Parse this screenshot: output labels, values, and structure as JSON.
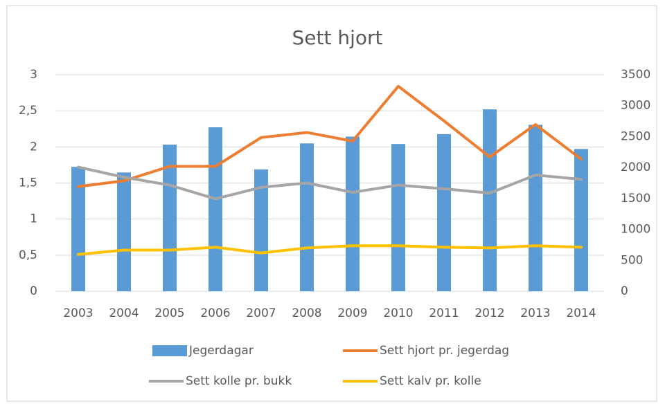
{
  "chart_data": {
    "type": "combo",
    "title": "Sett hjort",
    "categories": [
      "2003",
      "2004",
      "2005",
      "2006",
      "2007",
      "2008",
      "2009",
      "2010",
      "2011",
      "2012",
      "2013",
      "2014"
    ],
    "series": [
      {
        "name": "Jegerdagar",
        "type": "bar",
        "axis": "y2",
        "color": "#5b9bd5",
        "values": [
          2010,
          1920,
          2370,
          2650,
          1970,
          2390,
          2500,
          2380,
          2540,
          2940,
          2690,
          2300
        ]
      },
      {
        "name": "Sett hjort pr. jegerdag",
        "type": "line",
        "color": "#ed7d31",
        "values": [
          1.45,
          1.53,
          1.73,
          1.73,
          2.13,
          2.2,
          2.08,
          2.84,
          2.36,
          1.86,
          2.31,
          1.83
        ]
      },
      {
        "name": "Sett kolle pr. bukk",
        "type": "line",
        "color": "#a5a5a5",
        "values": [
          1.72,
          1.58,
          1.47,
          1.28,
          1.44,
          1.5,
          1.37,
          1.47,
          1.42,
          1.36,
          1.61,
          1.55
        ]
      },
      {
        "name": "Sett kalv pr. kolle",
        "type": "line",
        "color": "#ffc000",
        "values": [
          0.51,
          0.57,
          0.57,
          0.61,
          0.53,
          0.6,
          0.63,
          0.63,
          0.61,
          0.6,
          0.63,
          0.61
        ]
      }
    ],
    "ylim": [
      0,
      3
    ],
    "yticks": [
      0,
      {
        "value": 0.5,
        "label": "0,5"
      },
      1,
      {
        "value": 1.5,
        "label": "1,5"
      },
      2,
      {
        "value": 2.5,
        "label": "2,5"
      },
      3
    ],
    "y2lim": [
      0,
      3500
    ],
    "y2ticks": [
      0,
      500,
      1000,
      1500,
      2000,
      2500,
      3000,
      3500
    ],
    "grid": true,
    "legend": "bottom"
  }
}
